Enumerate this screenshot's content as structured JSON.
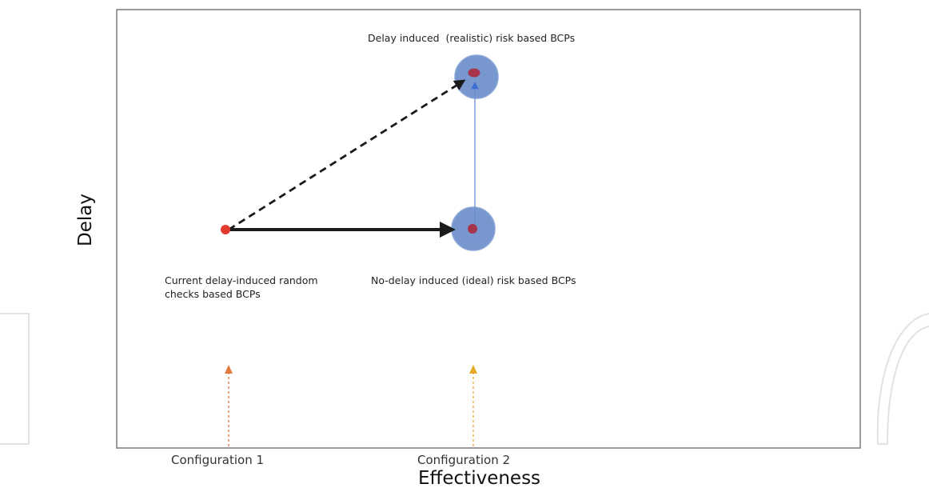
{
  "axes": {
    "x_title": "Effectiveness",
    "y_title": "Delay"
  },
  "configurations": [
    {
      "label": "Configuration 1",
      "arrow_color": "#e07a3c"
    },
    {
      "label": "Configuration 2",
      "arrow_color": "#e8a92a"
    }
  ],
  "nodes": {
    "current": {
      "label": "Current delay-induced random checks based BCPs",
      "color": "#e53a2e"
    },
    "ideal": {
      "label": "No-delay induced (ideal) risk based BCPs",
      "halo_color": "#7897cf",
      "core_color": "#a8344b"
    },
    "realistic": {
      "label": "Delay induced  (realistic) risk based BCPs",
      "halo_color": "#7897cf",
      "core_color": "#a8344b"
    }
  },
  "edges": {
    "current_to_ideal": {
      "style": "solid",
      "color": "#1a1a1a"
    },
    "current_to_realistic": {
      "style": "dashed",
      "color": "#1a1a1a"
    },
    "ideal_to_realistic": {
      "style": "thin",
      "color": "#6a8fd0"
    }
  },
  "watermark": {
    "color": "#e2e2e2"
  }
}
